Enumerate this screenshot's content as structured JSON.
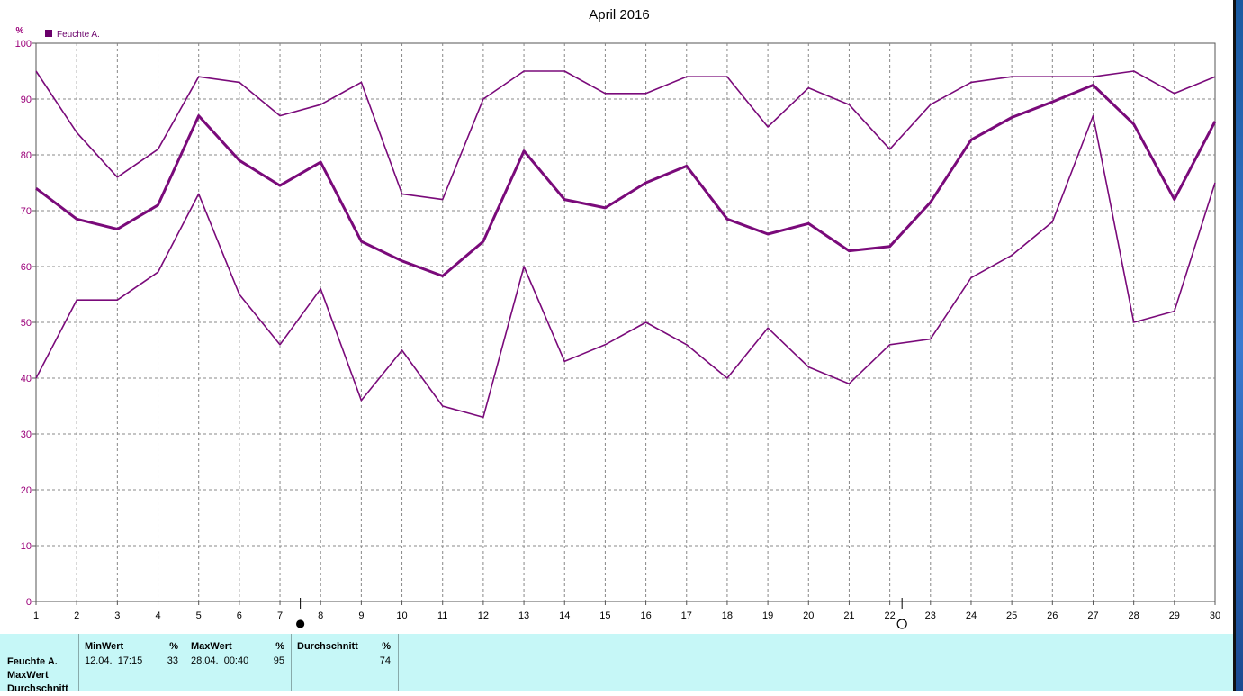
{
  "chart_data": {
    "type": "line",
    "title": "April 2016",
    "unit_label": "%",
    "legend": {
      "label": "Feuchte A.",
      "color": "#6a006a"
    },
    "ylim": [
      0,
      100
    ],
    "yticks": [
      0,
      10,
      20,
      30,
      40,
      50,
      60,
      70,
      80,
      90,
      100
    ],
    "x": [
      1,
      2,
      3,
      4,
      5,
      6,
      7,
      8,
      9,
      10,
      11,
      12,
      13,
      14,
      15,
      16,
      17,
      18,
      19,
      20,
      21,
      22,
      23,
      24,
      25,
      26,
      27,
      28,
      29,
      30
    ],
    "grid": true,
    "series": [
      {
        "values": [
          95,
          84,
          76,
          81,
          94,
          93,
          87,
          89,
          93,
          73,
          72,
          90,
          95,
          95,
          91,
          91,
          94,
          94,
          85,
          92,
          89,
          81,
          89,
          93,
          94,
          94,
          94,
          95,
          91,
          94
        ],
        "color": "#7a0a7a",
        "width": 1.6
      },
      {
        "values": [
          74,
          68.5,
          66.7,
          71,
          87,
          79,
          74.5,
          78.7,
          64.5,
          61,
          58.3,
          64.5,
          80.7,
          72,
          70.5,
          75,
          78,
          68.5,
          65.8,
          67.7,
          62.8,
          63.6,
          71.5,
          82.7,
          86.7,
          89.5,
          92.5,
          85.5,
          72,
          86
        ],
        "color": "#7a0a7a",
        "width": 3
      },
      {
        "values": [
          40,
          54,
          54,
          59,
          73,
          55,
          46,
          56,
          36,
          45,
          35,
          33,
          60,
          43,
          46,
          50,
          46,
          40,
          49,
          42,
          39,
          46,
          47,
          58,
          62,
          68,
          87,
          50,
          52,
          75
        ],
        "color": "#7a0a7a",
        "width": 1.6
      }
    ],
    "markers": [
      {
        "x": 7.5,
        "symbol": "filled-circle"
      },
      {
        "x": 22.3,
        "symbol": "open-circle"
      }
    ]
  },
  "stats": {
    "row_labels": [
      "Feuchte A.",
      "MaxWert",
      "Durchschnitt"
    ],
    "min": {
      "header": "MinWert",
      "unit": "%",
      "time": "12.04.  17:15",
      "value": "33"
    },
    "max": {
      "header": "MaxWert",
      "unit": "%",
      "time": "28.04.  00:40",
      "value": "95"
    },
    "avg": {
      "header": "Durchschnitt",
      "unit": "%",
      "value": "74"
    }
  },
  "colors": {
    "accent": "#6a006a",
    "panel": "#c6f7f7",
    "edge": "#1a5aa0"
  }
}
